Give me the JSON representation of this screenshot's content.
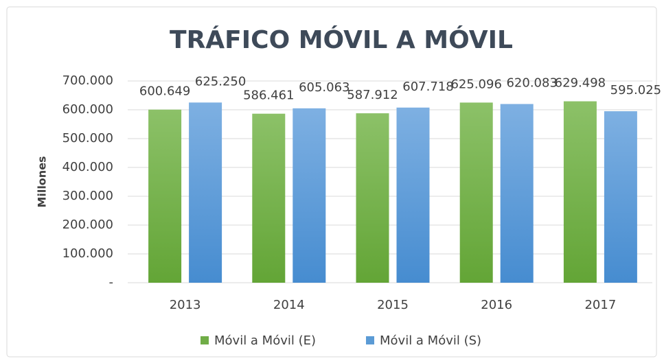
{
  "chart_data": {
    "type": "bar",
    "title": "TRÁFICO MÓVIL A MÓVIL",
    "ylabel": "Millones",
    "categories": [
      "2013",
      "2014",
      "2015",
      "2016",
      "2017"
    ],
    "series": [
      {
        "name": "Móvil a Móvil (E)",
        "color": "#70ad47",
        "values": [
          600649,
          586461,
          587912,
          625096,
          629498
        ],
        "value_labels": [
          "600.649",
          "586.461",
          "587.912",
          "625.096",
          "629.498"
        ]
      },
      {
        "name": "Móvil a Móvil (S)",
        "color": "#5b9bd5",
        "values": [
          625250,
          605063,
          607718,
          620083,
          595025
        ],
        "value_labels": [
          "625.250",
          "605.063",
          "607.718",
          "620.083",
          "595.025"
        ]
      }
    ],
    "ylim": [
      0,
      700000
    ],
    "yticks": [
      {
        "value": 0,
        "label": "-"
      },
      {
        "value": 100000,
        "label": "100.000"
      },
      {
        "value": 200000,
        "label": "200.000"
      },
      {
        "value": 300000,
        "label": "300.000"
      },
      {
        "value": 400000,
        "label": "400.000"
      },
      {
        "value": 500000,
        "label": "500.000"
      },
      {
        "value": 600000,
        "label": "600.000"
      },
      {
        "value": 700000,
        "label": "700.000"
      }
    ],
    "grid": true,
    "legend": "bottom"
  }
}
